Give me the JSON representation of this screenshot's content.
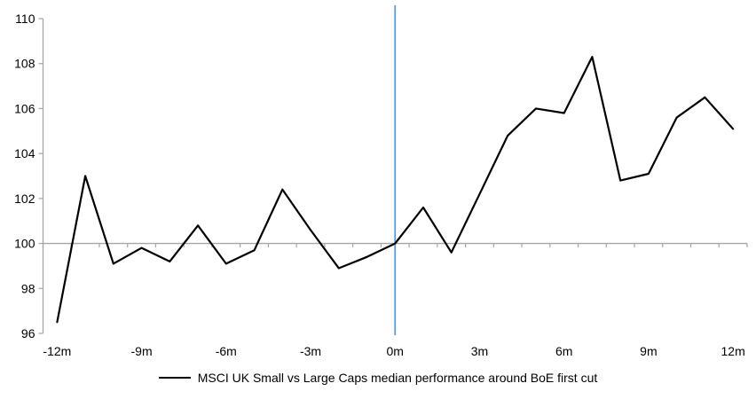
{
  "chart_data": {
    "type": "line",
    "title": "",
    "x": [
      -12,
      -11,
      -10,
      -9,
      -8,
      -7,
      -6,
      -5,
      -4,
      -3,
      -2,
      -1,
      0,
      1,
      2,
      3,
      4,
      5,
      6,
      7,
      8,
      9,
      10,
      11,
      12
    ],
    "series": [
      {
        "name": "MSCI UK Small vs Large Caps median performance around BoE first cut",
        "color": "#000000",
        "values": [
          96.5,
          103.0,
          99.1,
          99.8,
          99.2,
          100.8,
          99.1,
          99.7,
          102.4,
          100.6,
          98.9,
          99.4,
          100.0,
          101.6,
          99.6,
          102.2,
          104.8,
          106.0,
          105.8,
          108.3,
          102.8,
          103.1,
          105.6,
          106.5,
          105.1
        ]
      }
    ],
    "y_axis": {
      "ticks": [
        96,
        98,
        100,
        102,
        104,
        106,
        108,
        110
      ],
      "ylim": [
        96,
        110
      ]
    },
    "x_axis": {
      "tick_labels": [
        "-12m",
        "-9m",
        "-6m",
        "-3m",
        "0m",
        "3m",
        "6m",
        "9m",
        "12m"
      ],
      "tick_positions": [
        -12,
        -9,
        -6,
        -3,
        0,
        3,
        6,
        9,
        12
      ],
      "xlim": [
        -12.5,
        12.5
      ],
      "minor_tick_step": 1
    },
    "baseline": 100,
    "event_line": {
      "x": 0,
      "color": "#5B9BD5"
    },
    "axis_color": "#A6A6A6",
    "grid": "baseline-only",
    "legend_position": "bottom-center"
  }
}
